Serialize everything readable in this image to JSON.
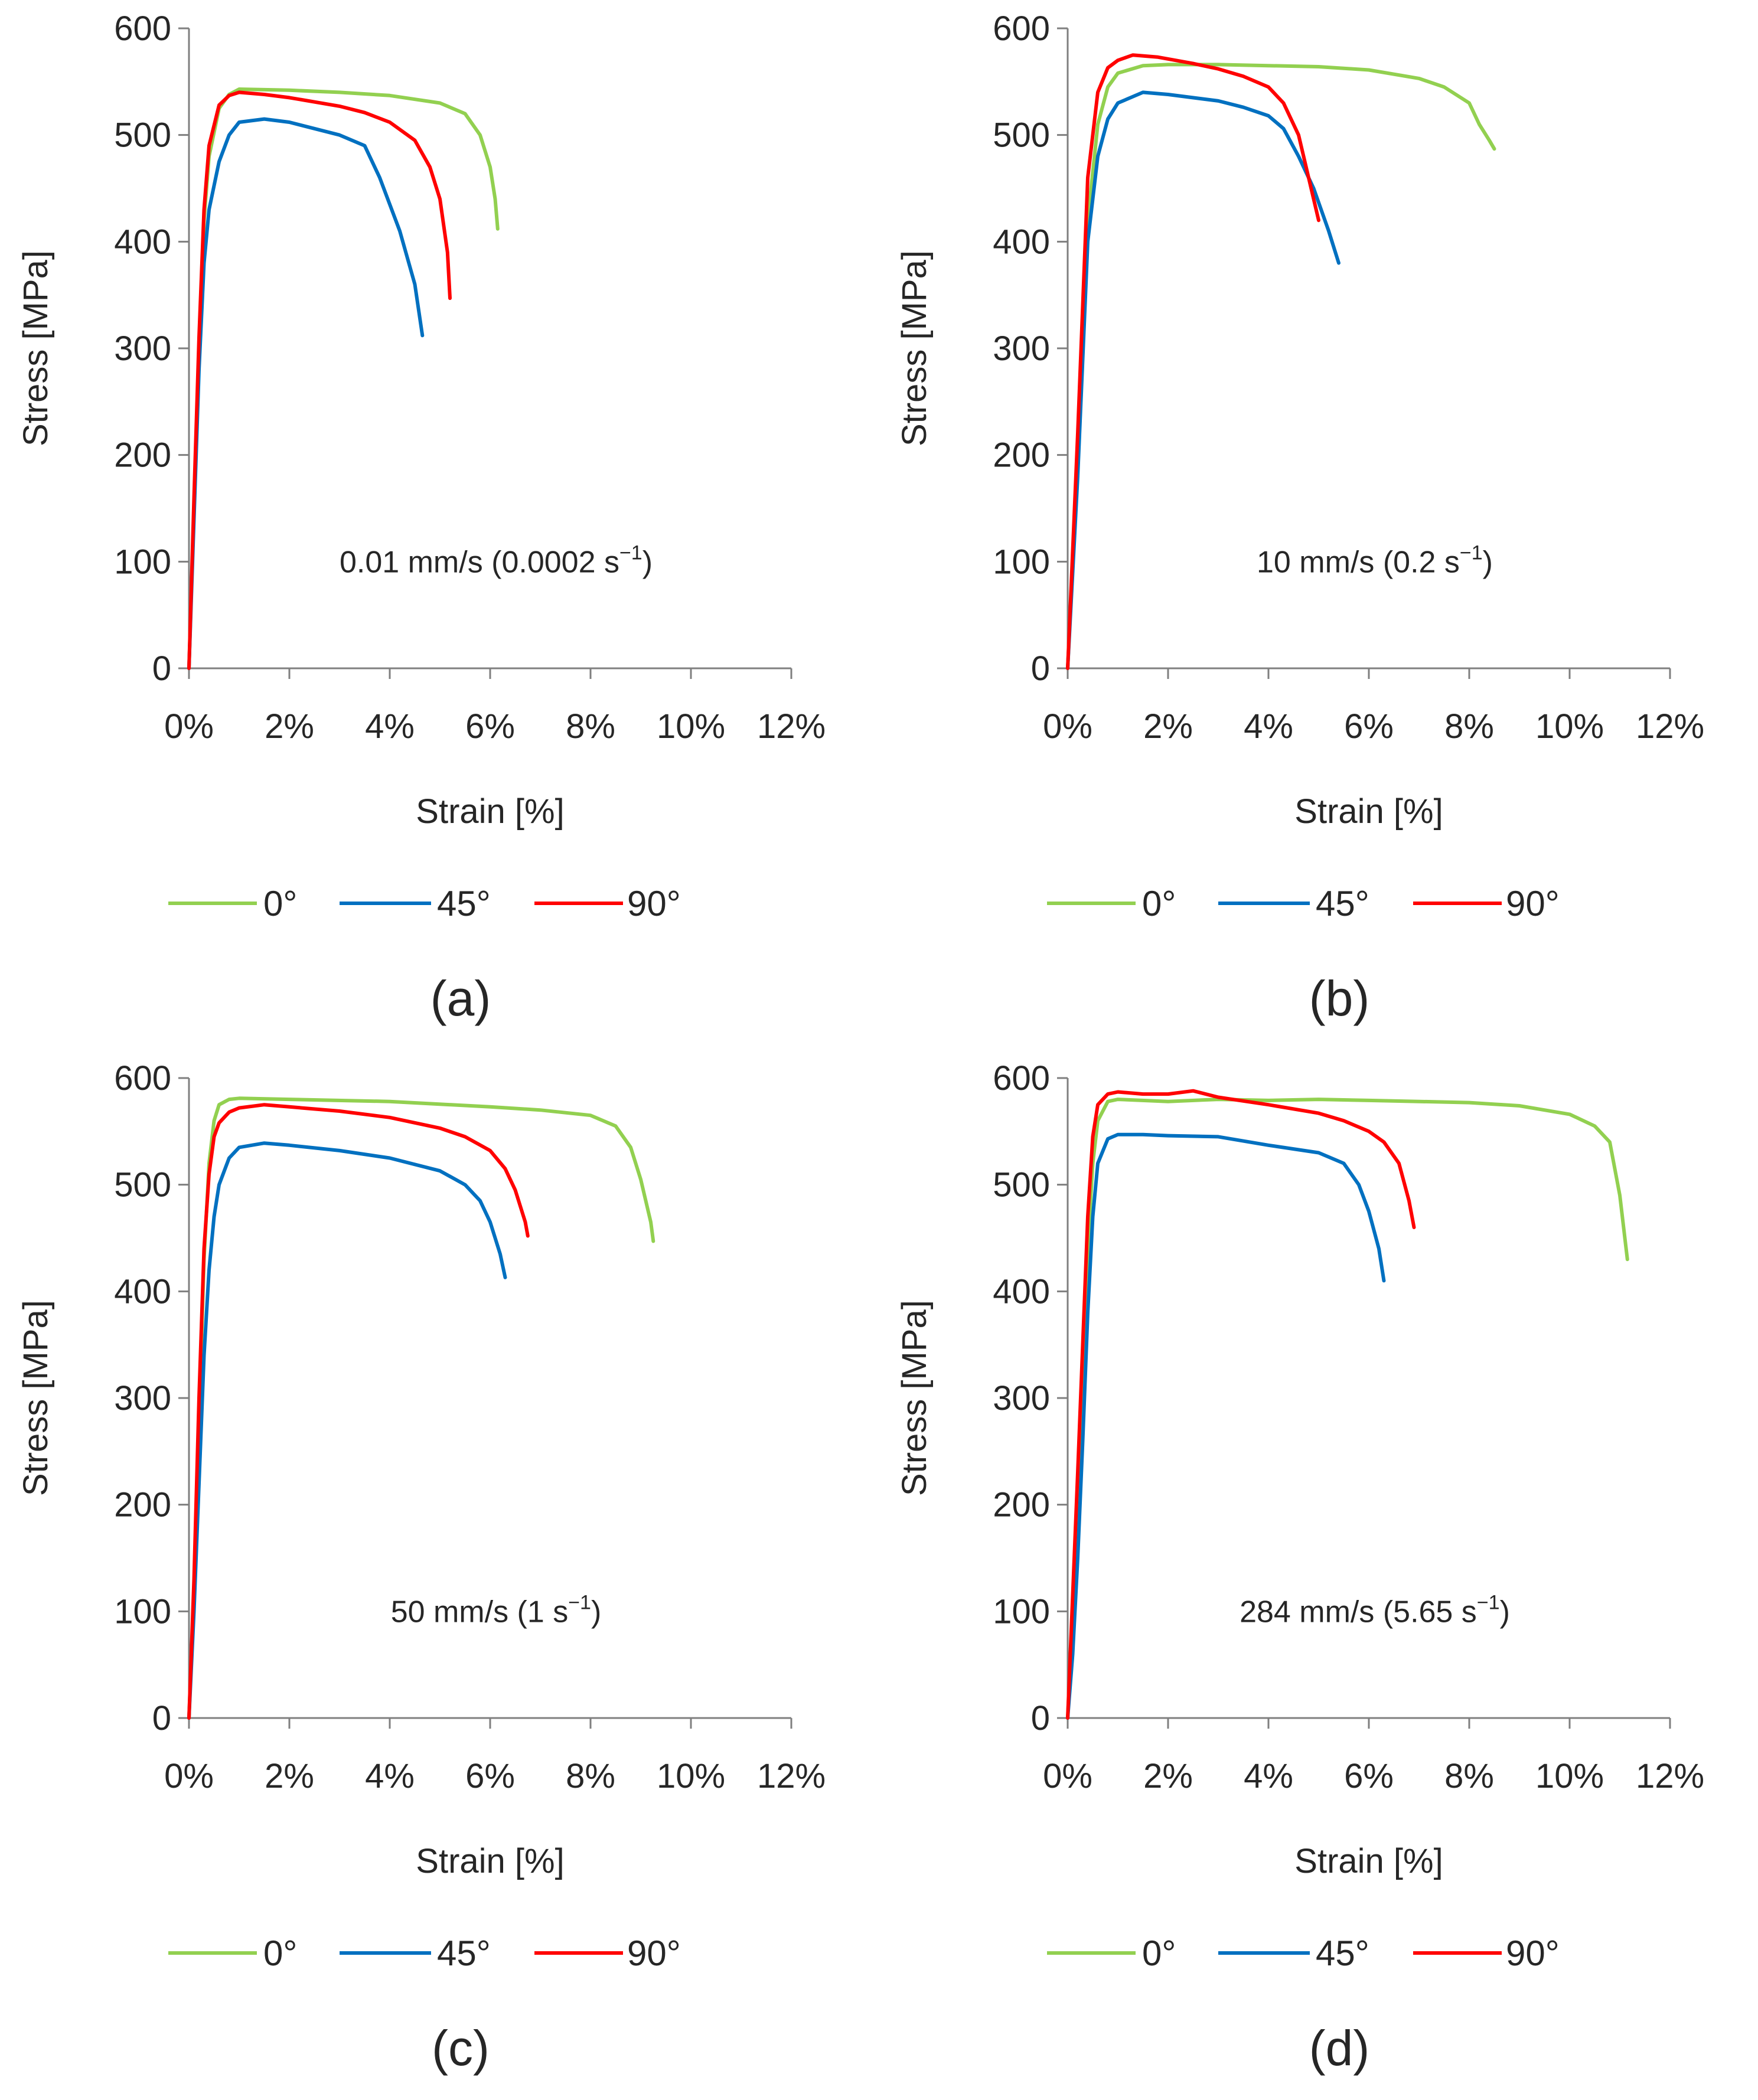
{
  "colors": {
    "series_0": "#92d050",
    "series_45": "#0070c0",
    "series_90": "#ff0000",
    "axis": "#7f7f7f",
    "text": "#262626"
  },
  "chart_data": [
    {
      "type": "line",
      "panel_label": "(a)",
      "annotation": {
        "text": "0.01 mm/s (0.0002 s",
        "sup": "−1",
        "close": ")"
      },
      "xlabel": "Strain [%]",
      "ylabel": "Stress [MPa]",
      "xlim": [
        0,
        12
      ],
      "ylim": [
        0,
        600
      ],
      "xticks": [
        "0%",
        "2%",
        "4%",
        "6%",
        "8%",
        "10%",
        "12%"
      ],
      "yticks": [
        "0",
        "100",
        "200",
        "300",
        "400",
        "500",
        "600"
      ],
      "series": [
        {
          "name": "0°",
          "color": "#92d050",
          "x": [
            0,
            0.1,
            0.2,
            0.3,
            0.4,
            0.6,
            0.8,
            1.0,
            2.0,
            3.0,
            4.0,
            5.0,
            5.5,
            5.8,
            6.0,
            6.1,
            6.15
          ],
          "y": [
            0,
            150,
            300,
            420,
            480,
            525,
            538,
            543,
            542,
            540,
            537,
            530,
            520,
            500,
            470,
            440,
            412
          ]
        },
        {
          "name": "45°",
          "color": "#0070c0",
          "x": [
            0,
            0.1,
            0.2,
            0.3,
            0.4,
            0.6,
            0.8,
            1.0,
            1.5,
            2.0,
            3.0,
            3.5,
            3.8,
            4.2,
            4.5,
            4.65
          ],
          "y": [
            0,
            140,
            280,
            380,
            430,
            475,
            500,
            512,
            515,
            512,
            500,
            490,
            460,
            410,
            360,
            312
          ]
        },
        {
          "name": "90°",
          "color": "#ff0000",
          "x": [
            0,
            0.1,
            0.2,
            0.3,
            0.4,
            0.6,
            0.8,
            1.0,
            1.5,
            2.0,
            3.0,
            3.5,
            4.0,
            4.5,
            4.8,
            5.0,
            5.15,
            5.2
          ],
          "y": [
            0,
            160,
            310,
            430,
            490,
            528,
            537,
            540,
            538,
            535,
            527,
            521,
            512,
            495,
            470,
            440,
            390,
            347
          ]
        }
      ],
      "legend": [
        "0°",
        "45°",
        "90°"
      ]
    },
    {
      "type": "line",
      "panel_label": "(b)",
      "annotation": {
        "text": "10 mm/s (0.2 s",
        "sup": "−1",
        "close": ")"
      },
      "xlabel": "Strain [%]",
      "ylabel": "Stress [MPa]",
      "xlim": [
        0,
        12
      ],
      "ylim": [
        0,
        600
      ],
      "xticks": [
        "0%",
        "2%",
        "4%",
        "6%",
        "8%",
        "10%",
        "12%"
      ],
      "yticks": [
        "0",
        "100",
        "200",
        "300",
        "400",
        "500",
        "600"
      ],
      "series": [
        {
          "name": "0°",
          "color": "#92d050",
          "x": [
            0,
            0.2,
            0.4,
            0.6,
            0.8,
            1.0,
            1.5,
            2.0,
            3.0,
            4.0,
            5.0,
            6.0,
            7.0,
            7.5,
            8.0,
            8.2,
            8.4,
            8.5
          ],
          "y": [
            0,
            200,
            420,
            510,
            545,
            558,
            565,
            566,
            566,
            565,
            564,
            561,
            553,
            545,
            530,
            510,
            495,
            487
          ]
        },
        {
          "name": "45°",
          "color": "#0070c0",
          "x": [
            0,
            0.2,
            0.4,
            0.6,
            0.8,
            1.0,
            1.5,
            2.0,
            3.0,
            3.5,
            4.0,
            4.3,
            4.6,
            4.9,
            5.2,
            5.4
          ],
          "y": [
            0,
            180,
            400,
            480,
            515,
            530,
            540,
            538,
            532,
            526,
            518,
            506,
            480,
            450,
            410,
            380
          ]
        },
        {
          "name": "90°",
          "color": "#ff0000",
          "x": [
            0,
            0.2,
            0.4,
            0.6,
            0.8,
            1.0,
            1.3,
            1.8,
            2.5,
            3.0,
            3.5,
            4.0,
            4.3,
            4.6,
            4.8,
            5.0
          ],
          "y": [
            0,
            220,
            460,
            540,
            563,
            570,
            575,
            573,
            567,
            562,
            555,
            545,
            530,
            500,
            460,
            420
          ]
        }
      ],
      "legend": [
        "0°",
        "45°",
        "90°"
      ]
    },
    {
      "type": "line",
      "panel_label": "(c)",
      "annotation": {
        "text": "50 mm/s (1 s",
        "sup": "−1",
        "close": ")"
      },
      "xlabel": "Strain [%]",
      "ylabel": "Stress [MPa]",
      "xlim": [
        0,
        12
      ],
      "ylim": [
        0,
        600
      ],
      "xticks": [
        "0%",
        "2%",
        "4%",
        "6%",
        "8%",
        "10%",
        "12%"
      ],
      "yticks": [
        "0",
        "100",
        "200",
        "300",
        "400",
        "500",
        "600"
      ],
      "series": [
        {
          "name": "0°",
          "color": "#92d050",
          "x": [
            0,
            0.1,
            0.2,
            0.3,
            0.4,
            0.5,
            0.6,
            0.8,
            1.0,
            2.0,
            4.0,
            6.0,
            7.0,
            8.0,
            8.5,
            8.8,
            9.0,
            9.2,
            9.25
          ],
          "y": [
            0,
            120,
            280,
            430,
            520,
            560,
            575,
            580,
            581,
            580,
            578,
            573,
            570,
            565,
            555,
            535,
            505,
            465,
            447
          ]
        },
        {
          "name": "45°",
          "color": "#0070c0",
          "x": [
            0,
            0.1,
            0.2,
            0.3,
            0.4,
            0.5,
            0.6,
            0.8,
            1.0,
            1.5,
            2.0,
            3.0,
            4.0,
            5.0,
            5.5,
            5.8,
            6.0,
            6.2,
            6.3
          ],
          "y": [
            0,
            100,
            220,
            340,
            420,
            470,
            500,
            525,
            535,
            539,
            537,
            532,
            525,
            513,
            500,
            485,
            465,
            435,
            413
          ]
        },
        {
          "name": "90°",
          "color": "#ff0000",
          "x": [
            0,
            0.1,
            0.2,
            0.3,
            0.4,
            0.5,
            0.6,
            0.8,
            1.0,
            1.5,
            2.0,
            3.0,
            4.0,
            5.0,
            5.5,
            6.0,
            6.3,
            6.5,
            6.7,
            6.75
          ],
          "y": [
            0,
            130,
            300,
            440,
            510,
            545,
            558,
            568,
            572,
            575,
            573,
            569,
            563,
            553,
            545,
            532,
            515,
            495,
            465,
            452
          ]
        }
      ],
      "legend": [
        "0°",
        "45°",
        "90°"
      ]
    },
    {
      "type": "line",
      "panel_label": "(d)",
      "annotation": {
        "text": "284 mm/s (5.65 s",
        "sup": "−1",
        "close": ")"
      },
      "xlabel": "Strain [%]",
      "ylabel": "Stress [MPa]",
      "xlim": [
        0,
        12
      ],
      "ylim": [
        0,
        600
      ],
      "xticks": [
        "0%",
        "2%",
        "4%",
        "6%",
        "8%",
        "10%",
        "12%"
      ],
      "yticks": [
        "0",
        "100",
        "200",
        "300",
        "400",
        "500",
        "600"
      ],
      "series": [
        {
          "name": "0°",
          "color": "#92d050",
          "x": [
            0,
            0.2,
            0.4,
            0.5,
            0.6,
            0.8,
            1.0,
            2.0,
            3.0,
            4.0,
            5.0,
            6.0,
            7.0,
            8.0,
            9.0,
            10.0,
            10.5,
            10.8,
            11.0,
            11.15
          ],
          "y": [
            0,
            200,
            440,
            520,
            560,
            578,
            580,
            578,
            580,
            579,
            580,
            579,
            578,
            577,
            574,
            566,
            555,
            540,
            490,
            430
          ]
        },
        {
          "name": "45°",
          "color": "#0070c0",
          "x": [
            0,
            0.1,
            0.2,
            0.3,
            0.4,
            0.5,
            0.6,
            0.8,
            1.0,
            1.5,
            2.0,
            3.0,
            4.0,
            5.0,
            5.5,
            5.8,
            6.0,
            6.2,
            6.3
          ],
          "y": [
            0,
            60,
            150,
            260,
            380,
            470,
            520,
            543,
            547,
            547,
            546,
            545,
            537,
            530,
            520,
            500,
            475,
            440,
            410
          ]
        },
        {
          "name": "90°",
          "color": "#ff0000",
          "x": [
            0,
            0.2,
            0.4,
            0.5,
            0.6,
            0.8,
            1.0,
            1.5,
            2.0,
            2.5,
            3.0,
            4.0,
            5.0,
            5.5,
            6.0,
            6.3,
            6.6,
            6.8,
            6.9
          ],
          "y": [
            0,
            230,
            470,
            545,
            575,
            585,
            587,
            585,
            585,
            588,
            582,
            575,
            567,
            560,
            550,
            540,
            520,
            485,
            460
          ]
        }
      ],
      "legend": [
        "0°",
        "45°",
        "90°"
      ]
    }
  ]
}
